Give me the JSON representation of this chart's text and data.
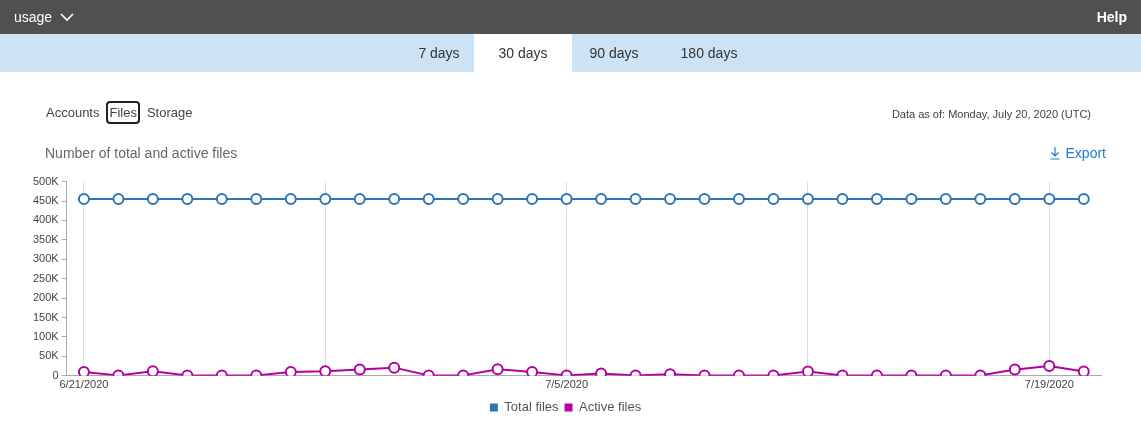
{
  "chart_data": {
    "type": "line",
    "title": "Number of total and active files",
    "annotations": [
      "usage",
      "Help",
      "7 days",
      "30 days",
      "90 days",
      "180 days",
      "Accounts",
      "Files",
      "Storage",
      "Data as of: Monday, July 20, 2020 (UTC)",
      "Export"
    ],
    "x": [
      "2020-06-21",
      "2020-06-22",
      "2020-06-23",
      "2020-06-24",
      "2020-06-25",
      "2020-06-26",
      "2020-06-27",
      "2020-06-28",
      "2020-06-29",
      "2020-06-30",
      "2020-07-01",
      "2020-07-02",
      "2020-07-03",
      "2020-07-04",
      "2020-07-05",
      "2020-07-06",
      "2020-07-07",
      "2020-07-08",
      "2020-07-09",
      "2020-07-10",
      "2020-07-11",
      "2020-07-12",
      "2020-07-13",
      "2020-07-14",
      "2020-07-15",
      "2020-07-16",
      "2020-07-17",
      "2020-07-18",
      "2020-07-19",
      "2020-07-20"
    ],
    "series": [
      {
        "name": "Total files",
        "color": "#2e75b6",
        "values": [
          455000,
          455000,
          455000,
          455000,
          455000,
          455000,
          455000,
          455000,
          455000,
          455000,
          455000,
          455000,
          455000,
          455000,
          455000,
          455000,
          455000,
          455000,
          455000,
          455000,
          455000,
          455000,
          455000,
          455000,
          455000,
          455000,
          455000,
          455000,
          455000,
          455000
        ]
      },
      {
        "name": "Active files",
        "color": "#b4009e",
        "values": [
          10000,
          1000,
          12000,
          1000,
          1000,
          1000,
          10000,
          12000,
          16000,
          21000,
          1000,
          1000,
          17000,
          10000,
          1000,
          6000,
          1000,
          4000,
          1000,
          1000,
          1000,
          11000,
          1000,
          1000,
          1000,
          1000,
          1000,
          16000,
          25000,
          11000
        ]
      }
    ],
    "xlim": [
      "2020-06-20T12:00",
      "2020-07-20T12:00"
    ],
    "xticks": [
      {
        "value": "2020-06-21",
        "label": "6/21/2020"
      },
      {
        "value": "2020-06-28",
        "label": null
      },
      {
        "value": "2020-07-05",
        "label": "7/5/2020"
      },
      {
        "value": "2020-07-12",
        "label": null
      },
      {
        "value": "2020-07-19",
        "label": "7/19/2020"
      }
    ],
    "ylim": [
      0,
      500000
    ],
    "yticks": [
      0,
      {
        "value": 50000,
        "label": "50K"
      },
      {
        "value": 100000,
        "label": "100K"
      },
      {
        "value": 150000,
        "label": "150K"
      },
      {
        "value": 200000,
        "label": "200K"
      },
      {
        "value": 250000,
        "label": "250K"
      },
      {
        "value": 300000,
        "label": "300K"
      },
      {
        "value": 350000,
        "label": "350K"
      },
      {
        "value": 400000,
        "label": "400K"
      },
      {
        "value": 450000,
        "label": "450K"
      },
      {
        "value": 500000,
        "label": "500K"
      }
    ],
    "grid": "x",
    "legend": "bottom",
    "marker": "circle",
    "line_style": "solid"
  }
}
